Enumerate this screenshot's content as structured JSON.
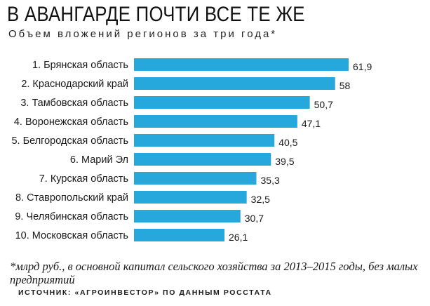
{
  "header": {
    "title": "В АВАНГАРДЕ ПОЧТИ ВСЕ ТЕ ЖЕ",
    "subtitle": "Объем вложений регионов за три года*"
  },
  "colors": {
    "bar": "#26a8dc"
  },
  "chart_data": {
    "type": "bar",
    "orientation": "horizontal",
    "categories": [
      "1. Брянская область",
      "2. Краснодарский край",
      "3. Тамбовская область",
      "4. Воронежская область",
      "5. Белгородская область",
      "6. Марий Эл",
      "7. Курская область",
      "8. Ставропольский край",
      "9. Челябинская область",
      "10. Московская область"
    ],
    "values": [
      61.9,
      58,
      50.7,
      47.1,
      40.5,
      39.5,
      35.3,
      32.5,
      30.7,
      26.1
    ],
    "value_labels": [
      "61,9",
      "58",
      "50,7",
      "47,1",
      "40,5",
      "39,5",
      "35,3",
      "32,5",
      "30,7",
      "26,1"
    ],
    "xlim": [
      0,
      61.9
    ],
    "grid": false,
    "legend": "none"
  },
  "footer": {
    "footnote": "*млрд руб., в основной капитал сельского хозяйства за 2013–2015 годы, без малых предприятий",
    "source": "ИСТОЧНИК: «АГРОИНВЕСТОР» ПО ДАННЫМ РОССТАТА"
  }
}
